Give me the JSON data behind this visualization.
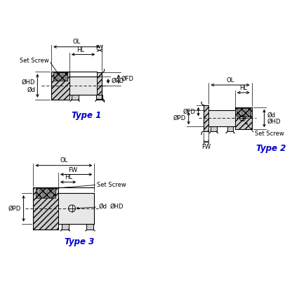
{
  "bg_color": "#ffffff",
  "line_color": "#000000",
  "type_color": "#0000cc",
  "type1_label": "Type 1",
  "type2_label": "Type 2",
  "type3_label": "Type 3",
  "figsize": [
    4.16,
    4.16
  ],
  "dpi": 100
}
